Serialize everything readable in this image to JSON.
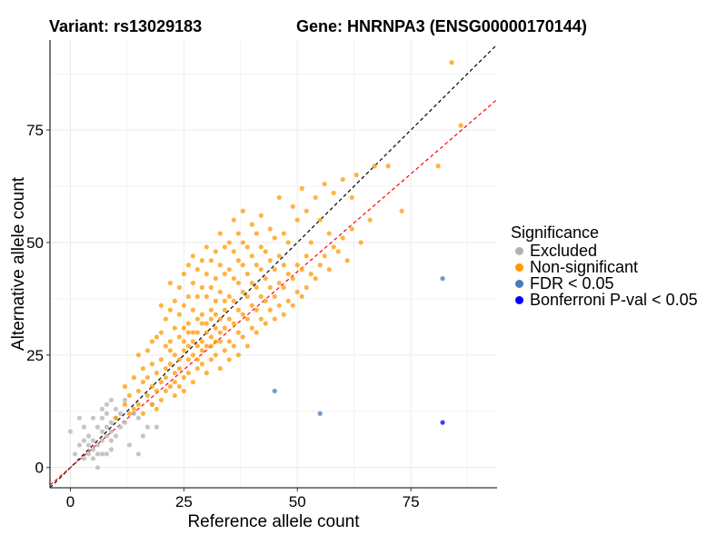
{
  "header": {
    "variant_label": "Variant: rs13029183",
    "gene_label": "Gene: HNRNPA3 (ENSG00000170144)"
  },
  "legend": {
    "title": "Significance",
    "items": [
      {
        "label": "Excluded",
        "color": "#b3b3b3"
      },
      {
        "label": "Non-significant",
        "color": "#ff9900"
      },
      {
        "label": "FDR < 0.05",
        "color": "#4a7ab5"
      },
      {
        "label": "Bonferroni P-val < 0.05",
        "color": "#0000ff"
      }
    ]
  },
  "chart_data": {
    "type": "scatter",
    "title": "",
    "xlabel": "Reference allele count",
    "ylabel": "Alternative allele count",
    "xlim": [
      -4.5,
      94
    ],
    "ylim": [
      -4.5,
      95
    ],
    "xticks": [
      0,
      25,
      50,
      75
    ],
    "yticks": [
      0,
      25,
      50,
      75
    ],
    "grid": true,
    "legend_position": "right",
    "reference_lines": [
      {
        "label": "",
        "slope": 1.0,
        "intercept": 0,
        "color": "#000000",
        "style": "dashed"
      },
      {
        "label": "",
        "slope": 0.87,
        "intercept": 0,
        "color": "#ff0000",
        "style": "dashed"
      }
    ],
    "series": [
      {
        "name": "Excluded",
        "color": "#b3b3b3",
        "x": [
          0,
          1,
          2,
          2,
          3,
          3,
          3,
          4,
          4,
          4,
          5,
          5,
          5,
          5,
          6,
          6,
          6,
          6,
          7,
          7,
          7,
          7,
          7,
          8,
          8,
          8,
          8,
          8,
          9,
          9,
          9,
          9,
          9,
          10,
          10,
          10,
          11,
          11,
          12,
          12,
          13,
          14,
          15,
          15,
          16,
          17,
          18,
          19
        ],
        "y": [
          8,
          3,
          11,
          5,
          2,
          9,
          6,
          3,
          7,
          5,
          2,
          6,
          11,
          4,
          0,
          9,
          5,
          3,
          8,
          11,
          3,
          13,
          6,
          14,
          7,
          9,
          3,
          12,
          15,
          10,
          4,
          6,
          8,
          13,
          7,
          11,
          9,
          12,
          15,
          10,
          5,
          12,
          3,
          11,
          7,
          9,
          14,
          9
        ]
      },
      {
        "name": "Non-significant",
        "color": "#ff9900",
        "x": [
          10,
          12,
          12,
          13,
          13,
          14,
          14,
          15,
          15,
          15,
          16,
          16,
          16,
          17,
          17,
          17,
          18,
          18,
          18,
          18,
          19,
          19,
          19,
          19,
          20,
          20,
          20,
          20,
          20,
          21,
          21,
          21,
          21,
          21,
          22,
          22,
          22,
          22,
          22,
          22,
          23,
          23,
          23,
          23,
          23,
          23,
          24,
          24,
          24,
          24,
          24,
          24,
          25,
          25,
          25,
          25,
          25,
          25,
          25,
          26,
          26,
          26,
          26,
          26,
          26,
          26,
          27,
          27,
          27,
          27,
          27,
          27,
          27,
          28,
          28,
          28,
          28,
          28,
          28,
          28,
          29,
          29,
          29,
          29,
          29,
          29,
          29,
          30,
          30,
          30,
          30,
          30,
          30,
          30,
          31,
          31,
          31,
          31,
          31,
          31,
          31,
          32,
          32,
          32,
          32,
          32,
          32,
          32,
          33,
          33,
          33,
          33,
          33,
          33,
          33,
          34,
          34,
          34,
          34,
          34,
          34,
          35,
          35,
          35,
          35,
          35,
          35,
          36,
          36,
          36,
          36,
          36,
          36,
          37,
          37,
          37,
          37,
          37,
          37,
          38,
          38,
          38,
          38,
          38,
          38,
          39,
          39,
          39,
          39,
          39,
          40,
          40,
          40,
          40,
          40,
          41,
          41,
          41,
          41,
          41,
          42,
          42,
          42,
          42,
          42,
          43,
          43,
          43,
          43,
          44,
          44,
          44,
          44,
          45,
          45,
          45,
          45,
          46,
          46,
          46,
          46,
          47,
          47,
          47,
          47,
          48,
          48,
          48,
          49,
          49,
          49,
          50,
          50,
          50,
          51,
          51,
          51,
          52,
          52,
          52,
          53,
          53,
          54,
          54,
          55,
          55,
          56,
          56,
          57,
          57,
          58,
          58,
          59,
          60,
          60,
          61,
          62,
          62,
          63,
          64,
          66,
          67,
          70,
          73,
          81,
          84,
          86
        ],
        "y": [
          11,
          14,
          18,
          12,
          16,
          20,
          13,
          17,
          25,
          14,
          19,
          22,
          12,
          16,
          26,
          20,
          14,
          18,
          23,
          28,
          17,
          21,
          29,
          13,
          15,
          19,
          24,
          30,
          36,
          17,
          22,
          27,
          33,
          20,
          18,
          23,
          28,
          35,
          41,
          26,
          16,
          21,
          25,
          31,
          37,
          19,
          18,
          24,
          29,
          34,
          40,
          22,
          20,
          26,
          31,
          36,
          43,
          17,
          28,
          21,
          27,
          32,
          38,
          45,
          24,
          30,
          19,
          25,
          30,
          35,
          41,
          47,
          28,
          22,
          27,
          33,
          38,
          44,
          24,
          30,
          23,
          28,
          34,
          40,
          46,
          26,
          32,
          21,
          27,
          32,
          38,
          43,
          49,
          30,
          24,
          29,
          35,
          40,
          46,
          27,
          33,
          25,
          31,
          37,
          42,
          48,
          28,
          34,
          22,
          28,
          33,
          39,
          45,
          52,
          30,
          26,
          31,
          37,
          43,
          49,
          35,
          28,
          33,
          38,
          44,
          50,
          24,
          27,
          32,
          37,
          42,
          48,
          55,
          25,
          30,
          35,
          41,
          46,
          52,
          29,
          34,
          39,
          45,
          50,
          57,
          27,
          33,
          38,
          43,
          49,
          31,
          36,
          41,
          47,
          54,
          30,
          35,
          40,
          45,
          52,
          33,
          38,
          44,
          49,
          56,
          32,
          37,
          42,
          48,
          35,
          40,
          46,
          53,
          33,
          38,
          44,
          51,
          36,
          41,
          47,
          60,
          34,
          40,
          45,
          52,
          37,
          43,
          50,
          36,
          42,
          58,
          39,
          45,
          55,
          38,
          44,
          62,
          40,
          47,
          57,
          43,
          50,
          42,
          60,
          45,
          55,
          47,
          63,
          44,
          52,
          49,
          61,
          48,
          51,
          64,
          46,
          53,
          60,
          65,
          50,
          55,
          67,
          67,
          57,
          67,
          90,
          76
        ]
      },
      {
        "name": "FDR < 0.05",
        "color": "#4a7ab5",
        "x": [
          45,
          55,
          82
        ],
        "y": [
          17,
          12,
          42
        ]
      },
      {
        "name": "Bonferroni P-val < 0.05",
        "color": "#0000ff",
        "x": [
          82
        ],
        "y": [
          10
        ]
      }
    ]
  }
}
